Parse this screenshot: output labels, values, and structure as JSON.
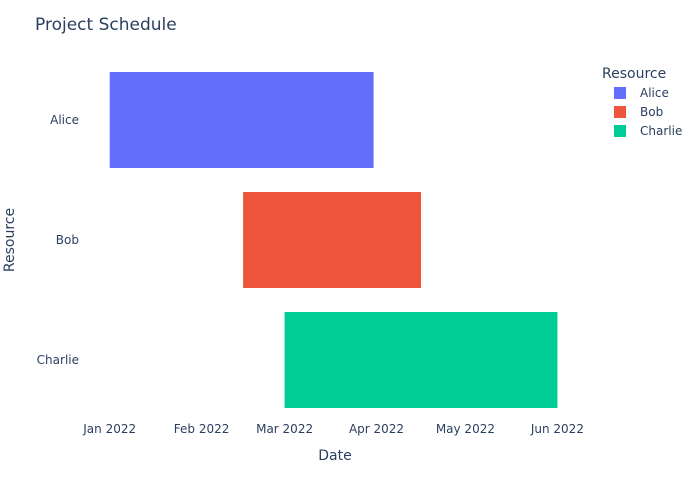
{
  "chart_data": {
    "type": "bar",
    "title": "Project Schedule",
    "xlabel": "Date",
    "ylabel": "Resource",
    "categories": [
      "Alice",
      "Bob",
      "Charlie"
    ],
    "tasks": [
      {
        "resource": "Alice",
        "start": "2022-01-01",
        "finish": "2022-03-31"
      },
      {
        "resource": "Bob",
        "start": "2022-02-15",
        "finish": "2022-04-16"
      },
      {
        "resource": "Charlie",
        "start": "2022-03-01",
        "finish": "2022-06-01"
      }
    ],
    "xlim": [
      "2021-12-23",
      "2022-06-11"
    ],
    "xticks": [
      {
        "date": "2022-01-01",
        "label": "Jan 2022"
      },
      {
        "date": "2022-02-01",
        "label": "Feb 2022"
      },
      {
        "date": "2022-03-01",
        "label": "Mar 2022"
      },
      {
        "date": "2022-04-01",
        "label": "Apr 2022"
      },
      {
        "date": "2022-05-01",
        "label": "May 2022"
      },
      {
        "date": "2022-06-01",
        "label": "Jun 2022"
      }
    ],
    "legend": {
      "title": "Resource",
      "placement": "top-right",
      "entries": [
        {
          "name": "Alice",
          "color": "#636efa"
        },
        {
          "name": "Bob",
          "color": "#ef553b"
        },
        {
          "name": "Charlie",
          "color": "#00cc96"
        }
      ]
    },
    "grid": false
  }
}
